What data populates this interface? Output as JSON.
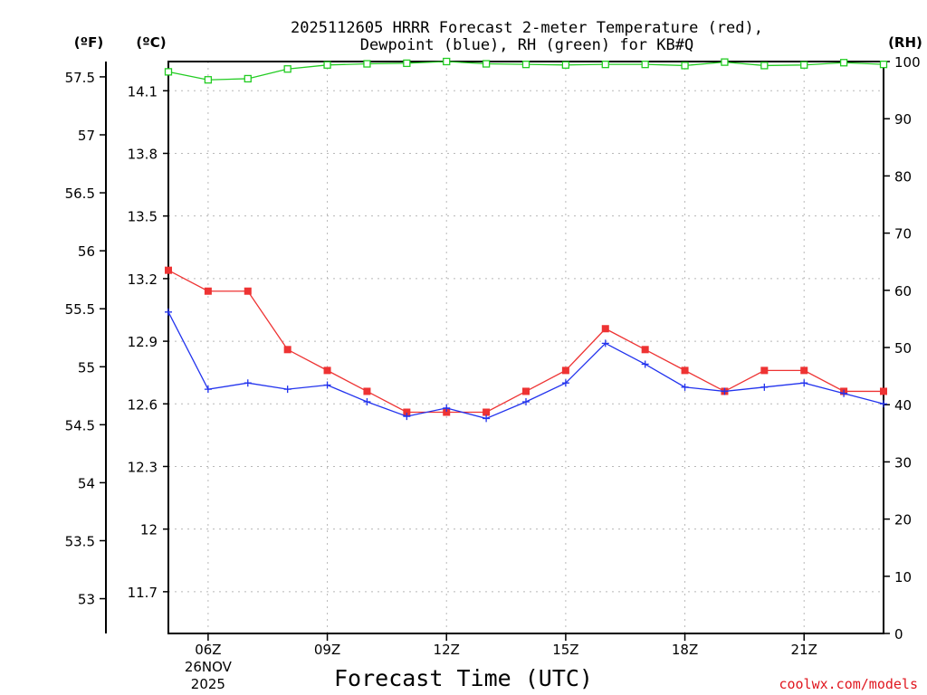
{
  "chart_data": {
    "type": "line",
    "title_line1": "2025112605 HRRR Forecast 2-meter Temperature (red),",
    "title_line2": "Dewpoint (blue), RH (green) for KB#Q",
    "xlabel": "Forecast Time (UTC)",
    "credit": "coolwx.com/models",
    "units": {
      "f": "(ºF)",
      "c": "(ºC)",
      "rh": "(RH)"
    },
    "x_start_hour": 5,
    "x_end_hour": 23,
    "x_ticks": [
      {
        "hour": 6,
        "label": "06Z",
        "sub1": "26NOV",
        "sub2": "2025"
      },
      {
        "hour": 9,
        "label": "09Z"
      },
      {
        "hour": 12,
        "label": "12Z"
      },
      {
        "hour": 15,
        "label": "15Z"
      },
      {
        "hour": 18,
        "label": "18Z"
      },
      {
        "hour": 21,
        "label": "21Z"
      }
    ],
    "ylim_c": [
      11.5,
      14.24
    ],
    "c_ticks": [
      "11.7",
      "12",
      "12.3",
      "12.6",
      "12.9",
      "13.2",
      "13.5",
      "13.8",
      "14.1"
    ],
    "f_ticks": [
      "53",
      "53.5",
      "54",
      "54.5",
      "55",
      "55.5",
      "56",
      "56.5",
      "57",
      "57.5"
    ],
    "rh_ticks": [
      "0",
      "10",
      "20",
      "30",
      "40",
      "50",
      "60",
      "70",
      "80",
      "90",
      "100"
    ],
    "ylim_rh": [
      0,
      100
    ],
    "hours": [
      5,
      6,
      7,
      8,
      9,
      10,
      11,
      12,
      13,
      14,
      15,
      16,
      17,
      18,
      19,
      20,
      21,
      22,
      23
    ],
    "series": [
      {
        "name": "Temperature",
        "color": "#ee3333",
        "marker": "square",
        "values": [
          13.24,
          13.14,
          13.14,
          12.86,
          12.76,
          12.66,
          12.56,
          12.56,
          12.56,
          12.66,
          12.76,
          12.96,
          12.86,
          12.76,
          12.66,
          12.76,
          12.76,
          12.66,
          12.66
        ]
      },
      {
        "name": "Dewpoint",
        "color": "#2233ee",
        "marker": "plus",
        "values": [
          13.04,
          12.67,
          12.7,
          12.67,
          12.69,
          12.61,
          12.54,
          12.58,
          12.53,
          12.61,
          12.7,
          12.89,
          12.79,
          12.68,
          12.66,
          12.68,
          12.7,
          12.65,
          12.6
        ]
      },
      {
        "name": "RH",
        "color": "#22cc22",
        "marker": "hollow-square",
        "values": [
          98.2,
          96.8,
          97.0,
          98.7,
          99.4,
          99.6,
          99.7,
          100.0,
          99.6,
          99.5,
          99.4,
          99.5,
          99.5,
          99.3,
          99.9,
          99.3,
          99.4,
          99.8,
          99.5
        ]
      }
    ]
  }
}
